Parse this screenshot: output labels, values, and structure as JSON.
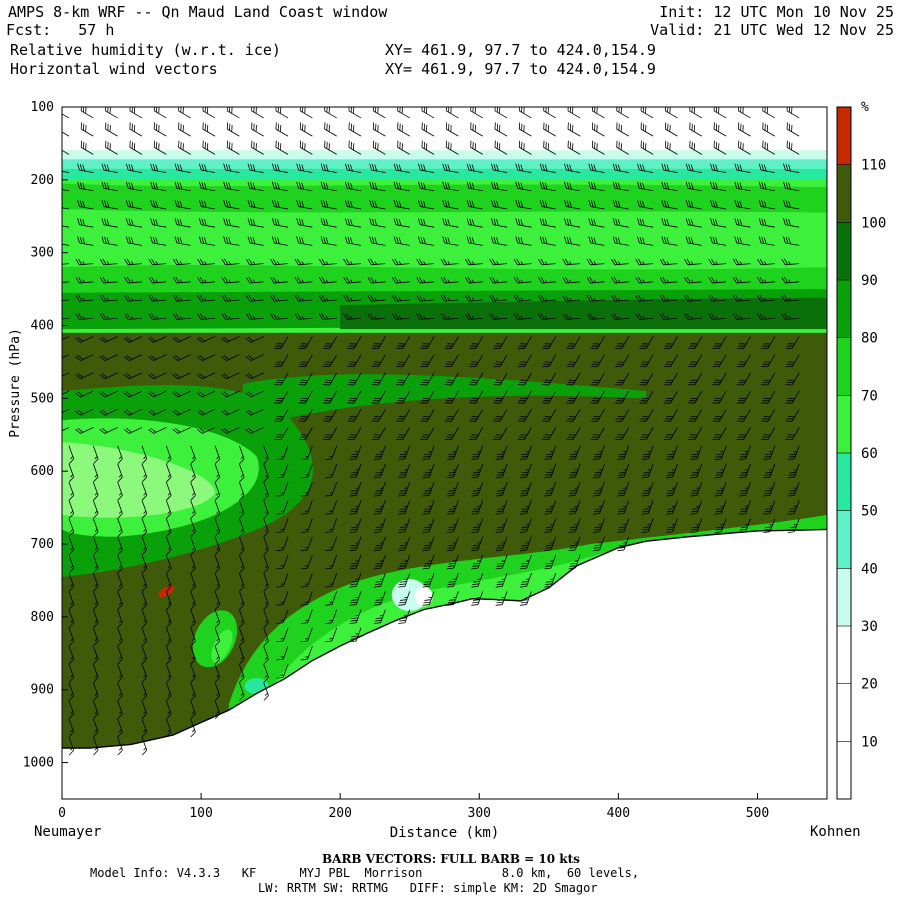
{
  "header": {
    "title": "AMPS 8-km WRF -- Qn Maud Land Coast window",
    "fcst_label": "Fcst:",
    "fcst_value": "57 h",
    "field1": "Relative humidity (w.r.t. ice)",
    "field2": "Horizontal wind vectors",
    "xy1": "XY= 461.9, 97.7 to 424.0,154.9",
    "xy2": "XY= 461.9, 97.7 to 424.0,154.9",
    "init": "Init: 12 UTC Mon 10 Nov 25",
    "valid": "Valid: 21 UTC Wed 12 Nov 25"
  },
  "footer": {
    "left_station": "Neumayer",
    "right_station": "Kohnen",
    "barb_note": "BARB VECTORS:  FULL BARB = 10 kts",
    "model_line1": "Model Info: V4.3.3   KF      MYJ PBL  Morrison           8.0 km,  60 levels,",
    "model_line2": "LW: RRTM SW: RRTMG   DIFF: simple KM: 2D Smagor"
  },
  "colors": {
    "c0_30": "#ffffff",
    "c30_40": "#c8fcec",
    "c40_50": "#60f0c8",
    "c50_60": "#28e8a0",
    "c60_70": "#3cf03c",
    "c70_80": "#1ed21e",
    "c80_90": "#0aa00a",
    "c90_100": "#0a700a",
    "c100_110": "#3f5a08",
    "c110p": "#c82a00",
    "ground": "#ffffff"
  },
  "chart_data": {
    "type": "cross-section",
    "xlabel": "Distance (km)",
    "ylabel": "Pressure (hPa)",
    "xlim": [
      0,
      550
    ],
    "ylim": [
      100,
      1050
    ],
    "x_ticks": [
      0,
      100,
      200,
      300,
      400,
      500
    ],
    "y_ticks": [
      100,
      200,
      300,
      400,
      500,
      600,
      700,
      800,
      900,
      1000
    ],
    "colorbar": {
      "unit": "%",
      "levels": [
        10,
        20,
        30,
        40,
        50,
        60,
        70,
        80,
        90,
        100,
        110
      ]
    },
    "terrain_surface": {
      "distance_km": [
        0,
        20,
        50,
        80,
        100,
        120,
        140,
        160,
        180,
        200,
        220,
        240,
        260,
        280,
        295,
        310,
        330,
        350,
        370,
        400,
        420,
        450,
        480,
        500,
        530,
        550
      ],
      "pressure_hpa": [
        980,
        980,
        975,
        962,
        945,
        928,
        905,
        885,
        860,
        840,
        822,
        805,
        790,
        782,
        775,
        776,
        778,
        760,
        730,
        705,
        696,
        690,
        685,
        682,
        681,
        680
      ]
    },
    "rh_layers_pressure_hpa": {
      "moist_band_top": 175,
      "moist_band_dense_top": 200,
      "dry_layer_bottom": 410,
      "saturated_deck_top": 410,
      "saturated_deck_bottom_east": 680
    },
    "wind_barb_full_kts": 10
  }
}
